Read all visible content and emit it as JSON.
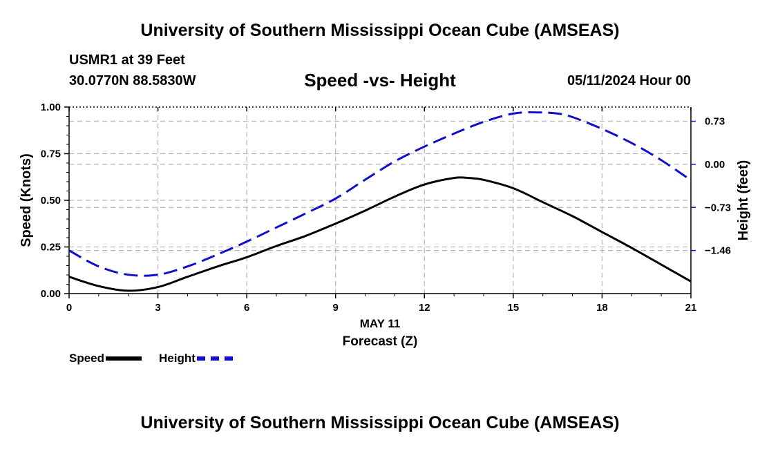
{
  "header": {
    "title": "University of Southern Mississippi Ocean Cube (AMSEAS)",
    "station": "USMR1 at 39 Feet",
    "coords": "30.0770N  88.5830W",
    "subtitle": "Speed -vs- Height",
    "datetime": "05/11/2024 Hour 00"
  },
  "footer": {
    "title": "University of Southern Mississippi Ocean Cube (AMSEAS)"
  },
  "legend": {
    "speed": "Speed",
    "height": "Height"
  },
  "colors": {
    "speed": "#000000",
    "height": "#1010cc",
    "grid": "#b5b5b5"
  },
  "chart_data": {
    "type": "line",
    "title": "Speed -vs- Height",
    "xlabel": "Forecast (Z)",
    "xsublabel": "MAY 11",
    "ylabel": "Speed (Knots)",
    "y2label": "Height (feet)",
    "xlim": [
      0,
      21
    ],
    "ylim": [
      0,
      1
    ],
    "y2lim": [
      -2.19,
      0.97
    ],
    "xticks": [
      0,
      3,
      6,
      9,
      12,
      15,
      18,
      21
    ],
    "yticks": [
      0,
      0.25,
      0.5,
      0.75,
      1.0
    ],
    "ytick_labels": [
      "0.00",
      "0.25",
      "0.50",
      "0.75",
      "1.00"
    ],
    "y2ticks": [
      -1.46,
      -0.73,
      0.0,
      0.73
    ],
    "y2tick_labels": [
      "−1.46",
      "−0.73",
      "0.00",
      "0.73"
    ],
    "grid": true,
    "series": [
      {
        "name": "Speed",
        "axis": "left",
        "style": "solid",
        "x": [
          0,
          1,
          2,
          3,
          4,
          5,
          6,
          7,
          8,
          9,
          10,
          11,
          12,
          13,
          13.5,
          14,
          15,
          16,
          17,
          18,
          19,
          20,
          21
        ],
        "y": [
          0.09,
          0.04,
          0.015,
          0.035,
          0.09,
          0.145,
          0.195,
          0.255,
          0.31,
          0.375,
          0.445,
          0.52,
          0.585,
          0.62,
          0.62,
          0.61,
          0.565,
          0.49,
          0.415,
          0.33,
          0.245,
          0.155,
          0.065
        ]
      },
      {
        "name": "Height",
        "axis": "right",
        "style": "dashed",
        "x": [
          0,
          1,
          2,
          3,
          4,
          5,
          6,
          7,
          8,
          9,
          10,
          11,
          12,
          13,
          14,
          15,
          15.8,
          16.5,
          17,
          18,
          19,
          20,
          21
        ],
        "y": [
          -1.46,
          -1.73,
          -1.87,
          -1.87,
          -1.73,
          -1.53,
          -1.31,
          -1.07,
          -0.83,
          -0.58,
          -0.26,
          0.05,
          0.3,
          0.52,
          0.72,
          0.86,
          0.88,
          0.86,
          0.8,
          0.6,
          0.36,
          0.07,
          -0.27
        ]
      }
    ]
  }
}
